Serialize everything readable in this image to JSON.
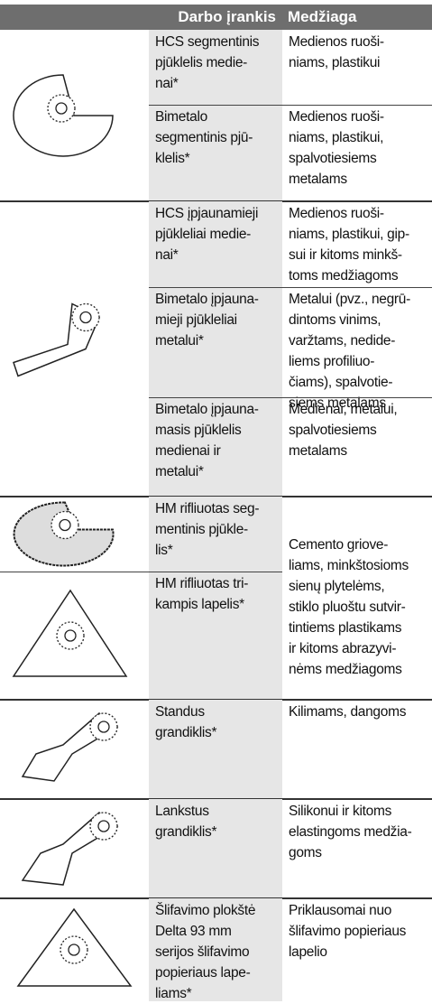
{
  "table": {
    "header": [
      "Darbo įrankis",
      "Medžiaga"
    ],
    "groups": [
      {
        "tools": [
          [
            "HCS segmentinis",
            "pjūklelis medie-",
            "nai*"
          ],
          [
            "Bimetalo",
            "segmentinis pjū-",
            "klelis*"
          ]
        ],
        "materials": [
          [
            "Medienos ruoši-",
            "niams, plastikui"
          ],
          [
            "Medienos ruoši-",
            "niams, plastikui,",
            "spalvotiesiems",
            "metalams"
          ]
        ]
      },
      {
        "tools": [
          [
            "HCS įpjaunamieji",
            "pjūkleliai medie-",
            "nai*"
          ],
          [
            "Bimetalo įpjauna-",
            "mieji pjūkleliai",
            "metalui*"
          ],
          [
            "Bimetalo įpjauna-",
            "masis pjūklelis",
            "medienai ir",
            "metalui*"
          ]
        ],
        "materials": [
          [
            "Medienos ruoši-",
            "niams, plastikui, gip-",
            "sui ir kitoms minkš-",
            "toms medžiagoms"
          ],
          [
            "Metalui (pvz., negrū-",
            "dintoms vinims,",
            "varžtams, nedide-",
            "liems profiliuo-",
            "čiams), spalvotie-",
            "siems metalams"
          ],
          [
            "Medienai, metalui,",
            "spalvotiesiems",
            "metalams"
          ]
        ]
      },
      {
        "tools": [
          [
            "HM rifliuotas seg-",
            "mentinis pjūkle-",
            "lis*"
          ],
          [
            "HM rifliuotas tri-",
            "kampis lapelis*"
          ]
        ],
        "materials": [
          [
            "Cemento griove-",
            "liams, minkštosioms",
            "sienų plytelėms,",
            "stiklo pluoštu sutvir-",
            "tintiems plastikams",
            "ir kitoms abrazyvi-",
            "nėms medžiagoms"
          ]
        ]
      },
      {
        "tools": [
          [
            "Standus",
            "grandiklis*"
          ]
        ],
        "materials": [
          [
            "Kilimams, dangoms"
          ]
        ]
      },
      {
        "tools": [
          [
            "Lankstus",
            "grandiklis*"
          ]
        ],
        "materials": [
          [
            "Silikonui ir kitoms",
            "elastingoms medžia-",
            "goms"
          ]
        ]
      },
      {
        "tools": [
          [
            "Šlifavimo plokštė",
            "Delta 93 mm",
            "serijos šlifavimo",
            "popieriaus lape-",
            "liams*"
          ]
        ],
        "materials": [
          [
            "Priklausomai nuo",
            "šlifavimo popieriaus",
            "lapelio"
          ]
        ]
      }
    ]
  }
}
